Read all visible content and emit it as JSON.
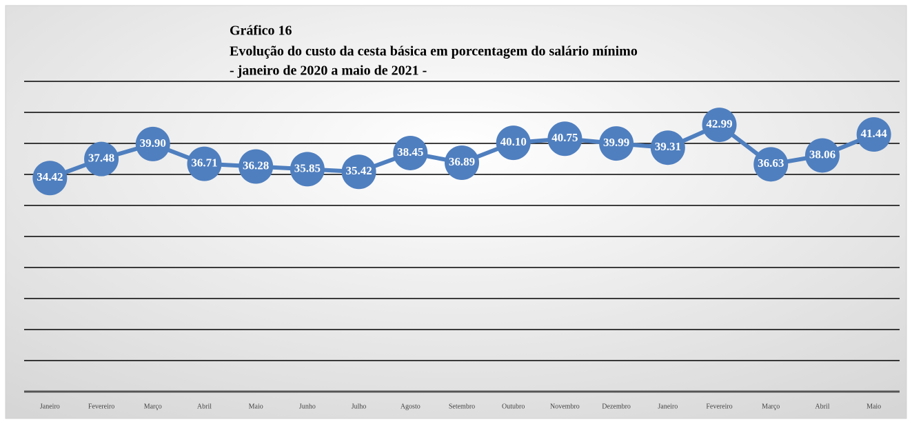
{
  "chart_data": {
    "type": "line",
    "title": "Gráfico 16",
    "subtitle": "Evolução do custo da cesta básica em porcentagem do salário mínimo",
    "period": "- janeiro de 2020 a maio de 2021 -",
    "categories": [
      "Janeiro",
      "Fevereiro",
      "Março",
      "Abril",
      "Maio",
      "Junho",
      "Julho",
      "Agosto",
      "Setembro",
      "Outubro",
      "Novembro",
      "Dezembro",
      "Janeiro",
      "Fevereiro",
      "Março",
      "Abril",
      "Maio"
    ],
    "series": [
      {
        "color": "#4f7fbf",
        "values": [
          34.42,
          37.48,
          39.9,
          36.71,
          36.28,
          35.85,
          35.42,
          38.45,
          36.89,
          40.1,
          40.75,
          39.99,
          39.31,
          42.99,
          36.63,
          38.06,
          41.44
        ],
        "value_labels": [
          "34.42",
          "37.48",
          "39.90",
          "36.71",
          "36.28",
          "35.85",
          "35.42",
          "38.45",
          "36.89",
          "40.10",
          "40.75",
          "39.99",
          "39.31",
          "42.99",
          "36.63",
          "38.06",
          "41.44"
        ]
      }
    ],
    "ylim": [
      0,
      50
    ],
    "yticks": [
      0,
      5,
      10,
      15,
      20,
      25,
      30,
      35,
      40,
      45,
      50
    ],
    "grid": true
  }
}
